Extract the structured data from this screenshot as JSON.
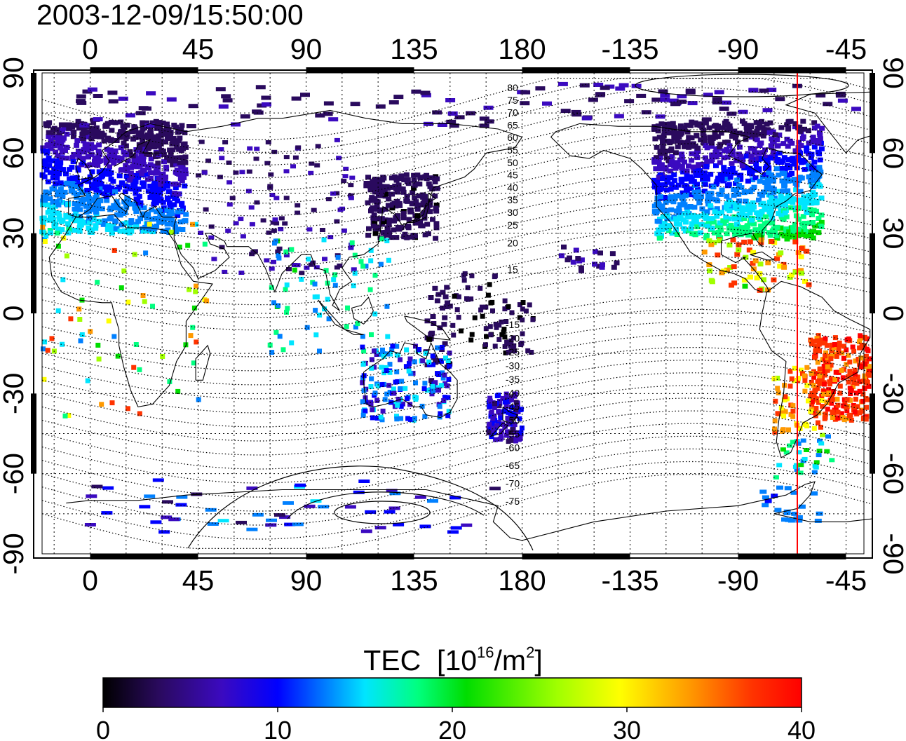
{
  "title": "2003-12-09/15:50:00",
  "map": {
    "lon_tick_labels": [
      "0",
      "45",
      "90",
      "135",
      "180",
      "-135",
      "-90",
      "-45"
    ],
    "lat_tick_labels": [
      "90",
      "60",
      "30",
      "0",
      "-30",
      "-60",
      "-90"
    ],
    "contour_labels_north": [
      "80",
      "75",
      "70",
      "65",
      "60",
      "55",
      "50",
      "45",
      "40",
      "35",
      "30",
      "25",
      "20",
      "15"
    ],
    "contour_labels_south": [
      "-15",
      "-20",
      "-25",
      "-30",
      "-35",
      "-40",
      "-45",
      "-50",
      "-55",
      "-60",
      "-65",
      "-70",
      "-75"
    ],
    "contour_label_note": "contours of magnetic latitude (dotted) labelled every 5 degrees",
    "marker_line": {
      "longitude": -53,
      "color": "#ff0000"
    },
    "grid": true
  },
  "colorbar": {
    "title": "TEC",
    "unit_prefix": "[10",
    "unit_exp": "16",
    "unit_mid": "/m",
    "unit_exp2": "2",
    "unit_suffix": "]",
    "tick_labels": [
      "0",
      "10",
      "20",
      "30",
      "40"
    ],
    "range": [
      0,
      40
    ],
    "colors": [
      "#000000",
      "#2a0a5e",
      "#3b0ac0",
      "#0000ff",
      "#0080ff",
      "#00e5ff",
      "#00ff80",
      "#00dd00",
      "#a0ff00",
      "#ffff00",
      "#ff9900",
      "#ff3300",
      "#ff0000"
    ]
  }
}
